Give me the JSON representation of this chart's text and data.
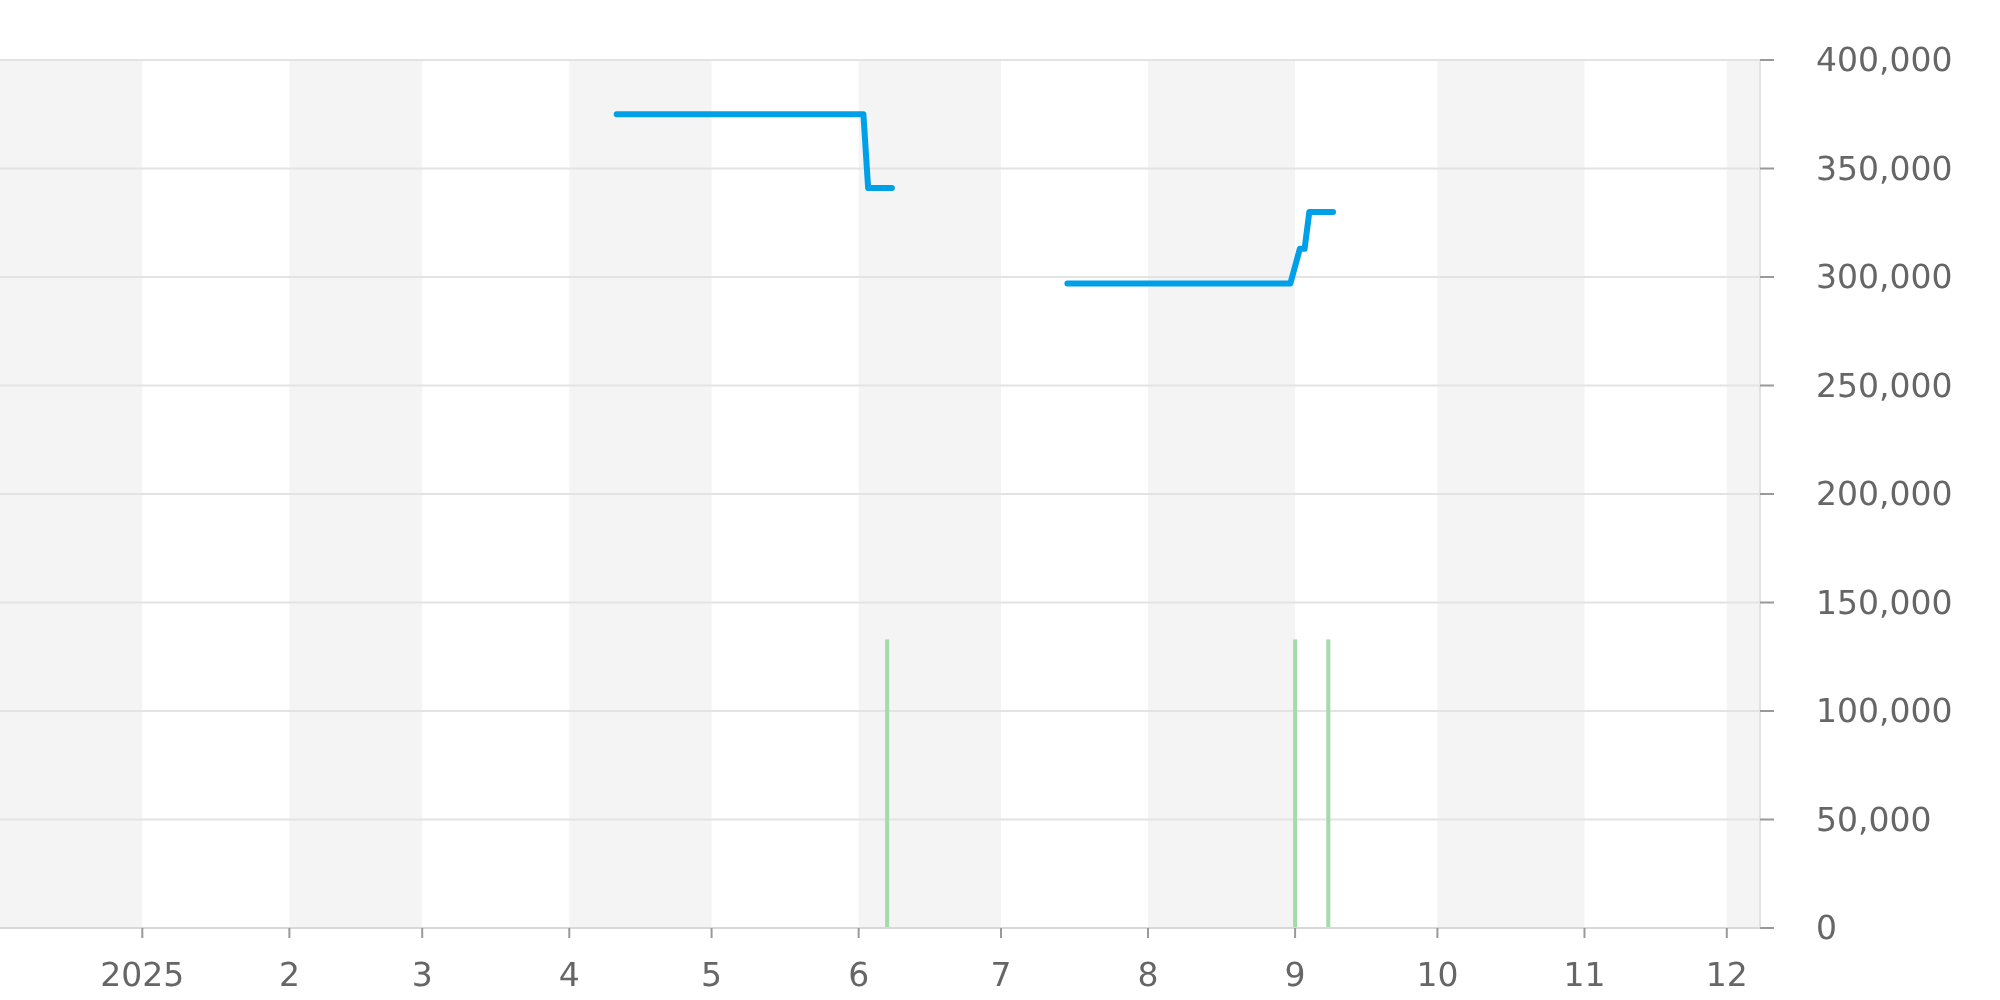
{
  "chart_data": {
    "type": "line",
    "xlim": [
      "2024-12-02",
      "2025-12-08"
    ],
    "xticks": [
      {
        "value": "2025-01-01",
        "label": "2025"
      },
      {
        "value": "2025-02-01",
        "label": "2"
      },
      {
        "value": "2025-03-01",
        "label": "3"
      },
      {
        "value": "2025-04-01",
        "label": "4"
      },
      {
        "value": "2025-05-01",
        "label": "5"
      },
      {
        "value": "2025-06-01",
        "label": "6"
      },
      {
        "value": "2025-07-01",
        "label": "7"
      },
      {
        "value": "2025-08-01",
        "label": "8"
      },
      {
        "value": "2025-09-01",
        "label": "9"
      },
      {
        "value": "2025-10-01",
        "label": "10"
      },
      {
        "value": "2025-11-01",
        "label": "11"
      },
      {
        "value": "2025-12-01",
        "label": "12"
      }
    ],
    "ylim": [
      0,
      400000
    ],
    "yticks": [
      {
        "value": 0,
        "label": "0"
      },
      {
        "value": 50000,
        "label": "50,000"
      },
      {
        "value": 100000,
        "label": "100,000"
      },
      {
        "value": 150000,
        "label": "150,000"
      },
      {
        "value": 200000,
        "label": "200,000"
      },
      {
        "value": 250000,
        "label": "250,000"
      },
      {
        "value": 300000,
        "label": "300,000"
      },
      {
        "value": 350000,
        "label": "350,000"
      },
      {
        "value": 400000,
        "label": "400,000"
      }
    ],
    "grid": "y",
    "bands": [
      {
        "axis": "x",
        "from": "2024-12-02",
        "to": "2025-01-01",
        "color": "#f4f4f4"
      },
      {
        "axis": "x",
        "from": "2025-02-01",
        "to": "2025-03-01",
        "color": "#f4f4f4"
      },
      {
        "axis": "x",
        "from": "2025-04-01",
        "to": "2025-05-01",
        "color": "#f4f4f4"
      },
      {
        "axis": "x",
        "from": "2025-06-01",
        "to": "2025-07-01",
        "color": "#f4f4f4"
      },
      {
        "axis": "x",
        "from": "2025-08-01",
        "to": "2025-09-01",
        "color": "#f4f4f4"
      },
      {
        "axis": "x",
        "from": "2025-10-01",
        "to": "2025-11-01",
        "color": "#f4f4f4"
      },
      {
        "axis": "x",
        "from": "2025-12-01",
        "to": "2025-12-08",
        "color": "#f4f4f4"
      }
    ],
    "series": [
      {
        "type": "bar",
        "color": "#a3dbab",
        "x": [
          "2025-06-07",
          "2025-09-01",
          "2025-09-08"
        ],
        "values": [
          133000,
          133000,
          133000
        ]
      },
      {
        "color": "#00a0e9",
        "x": [
          "2025-04-11",
          "2025-06-02",
          "2025-06-03",
          "2025-06-08",
          "2025-06-20",
          "2025-07-15",
          "2025-08-31",
          "2025-09-02",
          "2025-09-03",
          "2025-09-04",
          "2025-09-09"
        ],
        "values": [
          375000,
          375000,
          341000,
          341000,
          null,
          297000,
          297000,
          313000,
          313000,
          330000,
          330000
        ]
      }
    ]
  }
}
